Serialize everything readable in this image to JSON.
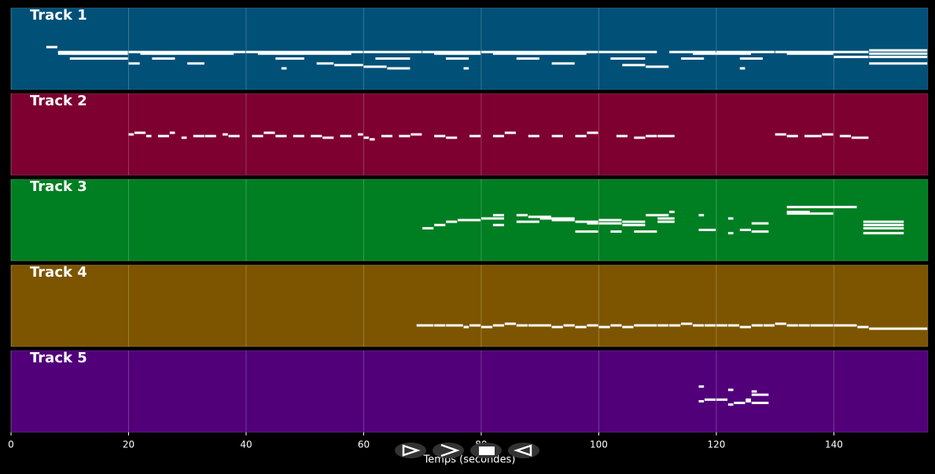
{
  "chart_data": {
    "type": "pianoroll",
    "xlabel": "Temps (secondes)",
    "xlim": [
      0,
      156
    ],
    "xticks": [
      0,
      20,
      40,
      60,
      80,
      100,
      120,
      140
    ],
    "ylim": [
      40,
      90
    ],
    "grid": true,
    "note_color": "#ffffff",
    "tracks": [
      {
        "name": "Track 1",
        "color": "#005078",
        "notes": [
          [
            6,
            8,
            66
          ],
          [
            8,
            20,
            63
          ],
          [
            8,
            20,
            62
          ],
          [
            10,
            20,
            59
          ],
          [
            20,
            22,
            56
          ],
          [
            20,
            40,
            63
          ],
          [
            22,
            38,
            62
          ],
          [
            24,
            28,
            59
          ],
          [
            30,
            33,
            56
          ],
          [
            40,
            60,
            63
          ],
          [
            42,
            58,
            62
          ],
          [
            45,
            50,
            59
          ],
          [
            46,
            47,
            53
          ],
          [
            52,
            55,
            56
          ],
          [
            55,
            60,
            55
          ],
          [
            60,
            70,
            63
          ],
          [
            62,
            68,
            59
          ],
          [
            60,
            64,
            54
          ],
          [
            64,
            68,
            53
          ],
          [
            70,
            80,
            63
          ],
          [
            72,
            80,
            62
          ],
          [
            74,
            78,
            59
          ],
          [
            77,
            78,
            53
          ],
          [
            80,
            100,
            63
          ],
          [
            82,
            98,
            62
          ],
          [
            86,
            90,
            59
          ],
          [
            92,
            96,
            56
          ],
          [
            100,
            110,
            63
          ],
          [
            102,
            108,
            59
          ],
          [
            104,
            108,
            55
          ],
          [
            108,
            112,
            54
          ],
          [
            112,
            120,
            63
          ],
          [
            114,
            118,
            59
          ],
          [
            116,
            126,
            62
          ],
          [
            120,
            130,
            63
          ],
          [
            124,
            128,
            59
          ],
          [
            130,
            146,
            63
          ],
          [
            132,
            140,
            62
          ],
          [
            140,
            146,
            60
          ],
          [
            146,
            156,
            64
          ],
          [
            146,
            156,
            62
          ],
          [
            146,
            156,
            60
          ],
          [
            146,
            156,
            56
          ],
          [
            124,
            125,
            53
          ]
        ]
      },
      {
        "name": "Track 2",
        "color": "#7d0030",
        "notes": [
          [
            20,
            21,
            65
          ],
          [
            21,
            23,
            66
          ],
          [
            23,
            24,
            64
          ],
          [
            25,
            27,
            64
          ],
          [
            27,
            28,
            66
          ],
          [
            29,
            30,
            63
          ],
          [
            31,
            33,
            64
          ],
          [
            33,
            35,
            64
          ],
          [
            36,
            37,
            65
          ],
          [
            37,
            39,
            64
          ],
          [
            41,
            43,
            64
          ],
          [
            43,
            45,
            66
          ],
          [
            45,
            47,
            64
          ],
          [
            48,
            50,
            64
          ],
          [
            51,
            53,
            64
          ],
          [
            53,
            55,
            63
          ],
          [
            56,
            58,
            64
          ],
          [
            59,
            60,
            65
          ],
          [
            60,
            61,
            63
          ],
          [
            61,
            62,
            62
          ],
          [
            63,
            65,
            64
          ],
          [
            66,
            68,
            64
          ],
          [
            68,
            70,
            65
          ],
          [
            72,
            74,
            64
          ],
          [
            74,
            76,
            63
          ],
          [
            78,
            80,
            64
          ],
          [
            82,
            84,
            64
          ],
          [
            84,
            86,
            66
          ],
          [
            88,
            90,
            64
          ],
          [
            92,
            94,
            64
          ],
          [
            96,
            98,
            64
          ],
          [
            98,
            100,
            66
          ],
          [
            103,
            105,
            64
          ],
          [
            106,
            108,
            63
          ],
          [
            108,
            110,
            64
          ],
          [
            110,
            113,
            64
          ],
          [
            130,
            132,
            65
          ],
          [
            132,
            134,
            64
          ],
          [
            135,
            138,
            64
          ],
          [
            138,
            140,
            65
          ],
          [
            141,
            143,
            64
          ],
          [
            143,
            146,
            63
          ]
        ]
      },
      {
        "name": "Track 3",
        "color": "#007e22",
        "notes": [
          [
            70,
            72,
            60
          ],
          [
            72,
            74,
            62
          ],
          [
            74,
            76,
            64
          ],
          [
            76,
            80,
            65
          ],
          [
            80,
            84,
            66
          ],
          [
            82,
            84,
            68
          ],
          [
            82,
            84,
            62
          ],
          [
            86,
            90,
            64
          ],
          [
            86,
            88,
            68
          ],
          [
            88,
            92,
            67
          ],
          [
            90,
            96,
            66
          ],
          [
            92,
            96,
            65
          ],
          [
            96,
            100,
            64
          ],
          [
            98,
            100,
            63
          ],
          [
            96,
            100,
            58
          ],
          [
            100,
            104,
            65
          ],
          [
            100,
            104,
            63
          ],
          [
            102,
            104,
            58
          ],
          [
            104,
            108,
            64
          ],
          [
            104,
            108,
            62
          ],
          [
            106,
            110,
            58
          ],
          [
            108,
            112,
            68
          ],
          [
            110,
            113,
            66
          ],
          [
            110,
            113,
            64
          ],
          [
            112,
            113,
            70
          ],
          [
            117,
            118,
            68
          ],
          [
            117,
            120,
            59
          ],
          [
            122,
            123,
            66
          ],
          [
            122,
            123,
            57
          ],
          [
            124,
            126,
            59
          ],
          [
            126,
            129,
            63
          ],
          [
            126,
            129,
            58
          ],
          [
            132,
            144,
            73
          ],
          [
            132,
            136,
            70
          ],
          [
            132,
            140,
            69
          ],
          [
            145,
            152,
            64
          ],
          [
            145,
            152,
            62
          ],
          [
            145,
            152,
            60
          ],
          [
            145,
            152,
            57
          ]
        ]
      },
      {
        "name": "Track 4",
        "color": "#7d5500",
        "notes": [
          [
            69,
            72,
            53
          ],
          [
            72,
            74,
            53
          ],
          [
            74,
            77,
            53
          ],
          [
            77,
            78,
            52
          ],
          [
            78,
            80,
            53
          ],
          [
            80,
            82,
            52
          ],
          [
            82,
            84,
            53
          ],
          [
            84,
            86,
            54
          ],
          [
            86,
            88,
            53
          ],
          [
            88,
            92,
            53
          ],
          [
            92,
            94,
            52
          ],
          [
            94,
            96,
            53
          ],
          [
            96,
            98,
            52
          ],
          [
            98,
            100,
            53
          ],
          [
            100,
            102,
            52
          ],
          [
            102,
            104,
            53
          ],
          [
            104,
            106,
            52
          ],
          [
            106,
            110,
            53
          ],
          [
            110,
            112,
            53
          ],
          [
            112,
            114,
            53
          ],
          [
            114,
            116,
            54
          ],
          [
            116,
            118,
            53
          ],
          [
            118,
            120,
            53
          ],
          [
            120,
            122,
            53
          ],
          [
            122,
            124,
            53
          ],
          [
            124,
            126,
            52
          ],
          [
            126,
            128,
            53
          ],
          [
            128,
            130,
            53
          ],
          [
            130,
            132,
            54
          ],
          [
            132,
            134,
            53
          ],
          [
            134,
            136,
            53
          ],
          [
            136,
            140,
            53
          ],
          [
            140,
            144,
            53
          ],
          [
            144,
            146,
            52
          ],
          [
            146,
            156,
            51
          ]
        ]
      },
      {
        "name": "Track 5",
        "color": "#51007a",
        "notes": [
          [
            117,
            118,
            68
          ],
          [
            117,
            118,
            59
          ],
          [
            118,
            120,
            60
          ],
          [
            120,
            122,
            60
          ],
          [
            122,
            123,
            66
          ],
          [
            122,
            123,
            57
          ],
          [
            123,
            125,
            58
          ],
          [
            125,
            126,
            59
          ],
          [
            126,
            127,
            65
          ],
          [
            126,
            129,
            63
          ],
          [
            126,
            129,
            58
          ],
          [
            125,
            126,
            60
          ]
        ]
      }
    ]
  }
}
